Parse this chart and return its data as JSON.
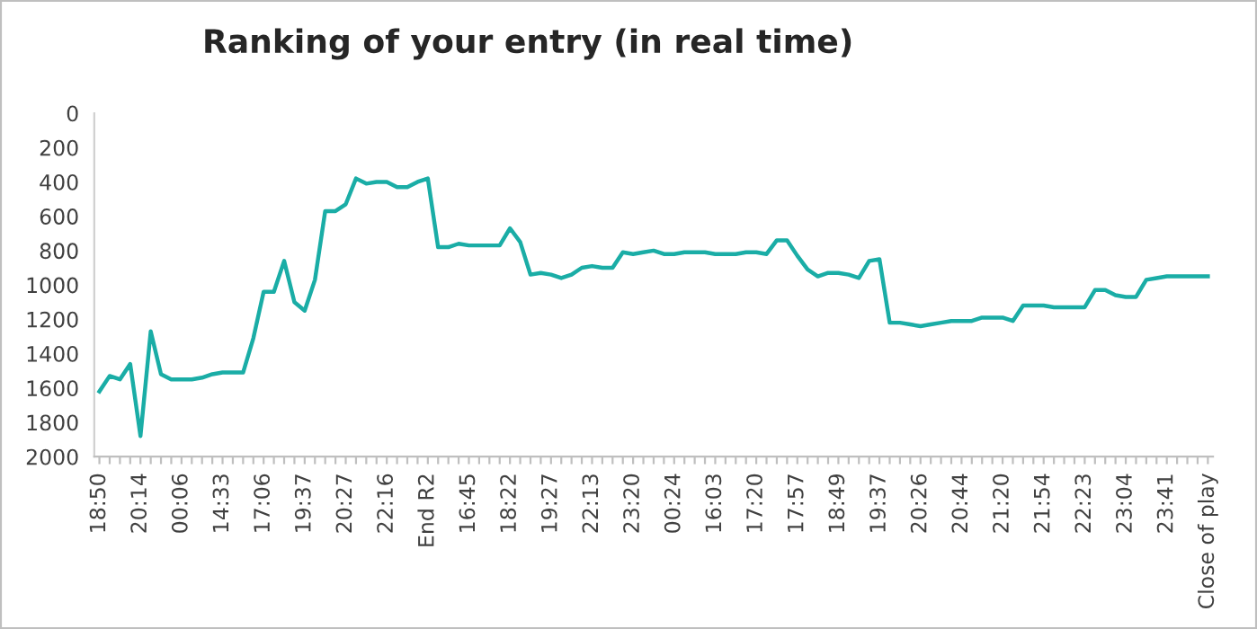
{
  "chart_data": {
    "type": "line",
    "title": "Ranking of your entry (in real time)",
    "categories": [
      "18:50",
      null,
      null,
      null,
      "20:14",
      null,
      null,
      null,
      "00:06",
      null,
      null,
      null,
      "14:33",
      null,
      null,
      null,
      "17:06",
      null,
      null,
      null,
      "19:37",
      null,
      null,
      null,
      "20:27",
      null,
      null,
      null,
      "22:16",
      null,
      null,
      null,
      "End R2",
      null,
      null,
      null,
      "16:45",
      null,
      null,
      null,
      "18:22",
      null,
      null,
      null,
      "19:27",
      null,
      null,
      null,
      "22:13",
      null,
      null,
      null,
      "23:20",
      null,
      null,
      null,
      "00:24",
      null,
      null,
      null,
      "16:03",
      null,
      null,
      null,
      "17:20",
      null,
      null,
      null,
      "17:57",
      null,
      null,
      null,
      "18:49",
      null,
      null,
      null,
      "19:37",
      null,
      null,
      null,
      "20:26",
      null,
      null,
      null,
      "20:44",
      null,
      null,
      null,
      "21:20",
      null,
      null,
      null,
      "21:54",
      null,
      null,
      null,
      "22:23",
      null,
      null,
      null,
      "23:04",
      null,
      null,
      null,
      "23:41",
      null,
      null,
      null,
      "Close of play"
    ],
    "series": [
      {
        "color": "#1aada6",
        "values": [
          1620,
          1530,
          1550,
          1460,
          1880,
          1270,
          1520,
          1550,
          1550,
          1550,
          1540,
          1520,
          1510,
          1510,
          1510,
          1310,
          1040,
          1040,
          860,
          1100,
          1150,
          970,
          570,
          570,
          530,
          380,
          410,
          400,
          400,
          430,
          430,
          400,
          380,
          780,
          780,
          760,
          770,
          770,
          770,
          770,
          670,
          750,
          940,
          930,
          940,
          960,
          940,
          900,
          890,
          900,
          900,
          810,
          820,
          810,
          800,
          820,
          820,
          810,
          810,
          810,
          820,
          820,
          820,
          810,
          810,
          820,
          740,
          740,
          830,
          910,
          950,
          930,
          930,
          940,
          960,
          860,
          850,
          1220,
          1220,
          1230,
          1240,
          1230,
          1220,
          1210,
          1210,
          1210,
          1190,
          1190,
          1190,
          1210,
          1120,
          1120,
          1120,
          1130,
          1130,
          1130,
          1130,
          1030,
          1030,
          1060,
          1070,
          1070,
          970,
          960,
          950,
          950,
          950,
          950,
          950
        ]
      }
    ],
    "ylim": [
      2000,
      0
    ],
    "yticks": [
      0,
      200,
      400,
      600,
      800,
      1000,
      1200,
      1400,
      1600,
      1800,
      2000
    ],
    "grid": false,
    "marker": "none",
    "line_style": "solid"
  }
}
